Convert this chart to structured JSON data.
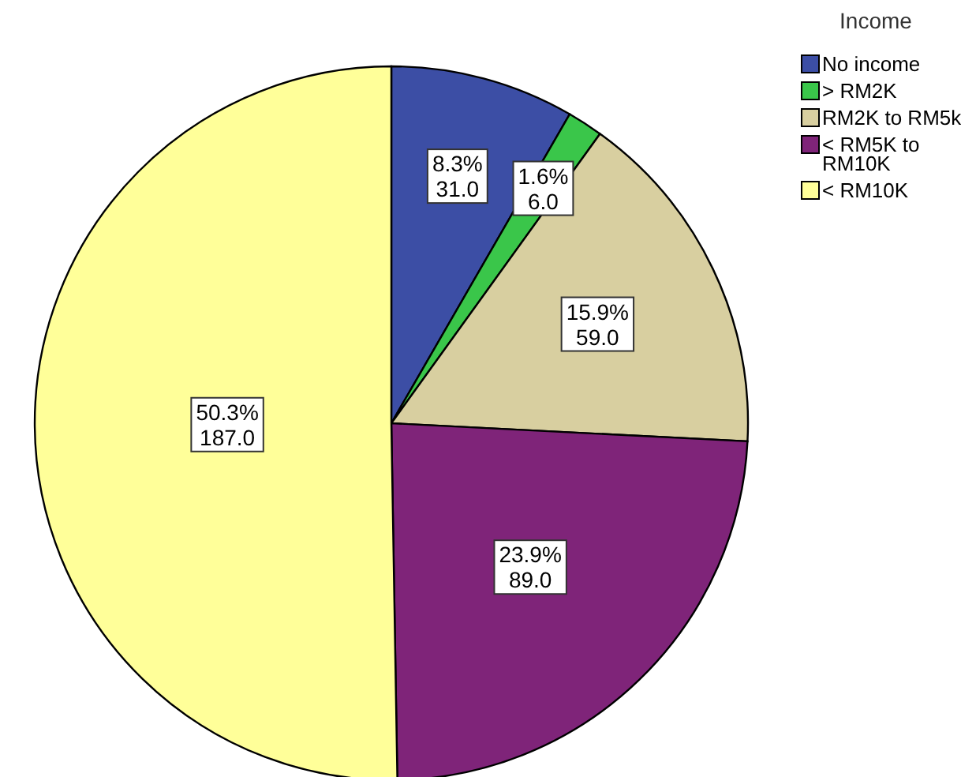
{
  "chart_data": {
    "type": "pie",
    "legend_title": "Income",
    "legend": "top right",
    "categories": [
      "No income",
      "> RM2K",
      "RM2K to RM5k",
      "< RM5K to RM10K",
      "< RM10K"
    ],
    "values": [
      31,
      6,
      59,
      89,
      187
    ],
    "colors": [
      "#3c4ea5",
      "#3ac64a",
      "#d8cfa0",
      "#7f2479",
      "#ffff99"
    ],
    "value_labels": [
      "8.3%\n31.0",
      "1.6%\n6.0",
      "15.9%\n59.0",
      "23.9%\n89.0",
      "50.3%\n187.0"
    ]
  }
}
